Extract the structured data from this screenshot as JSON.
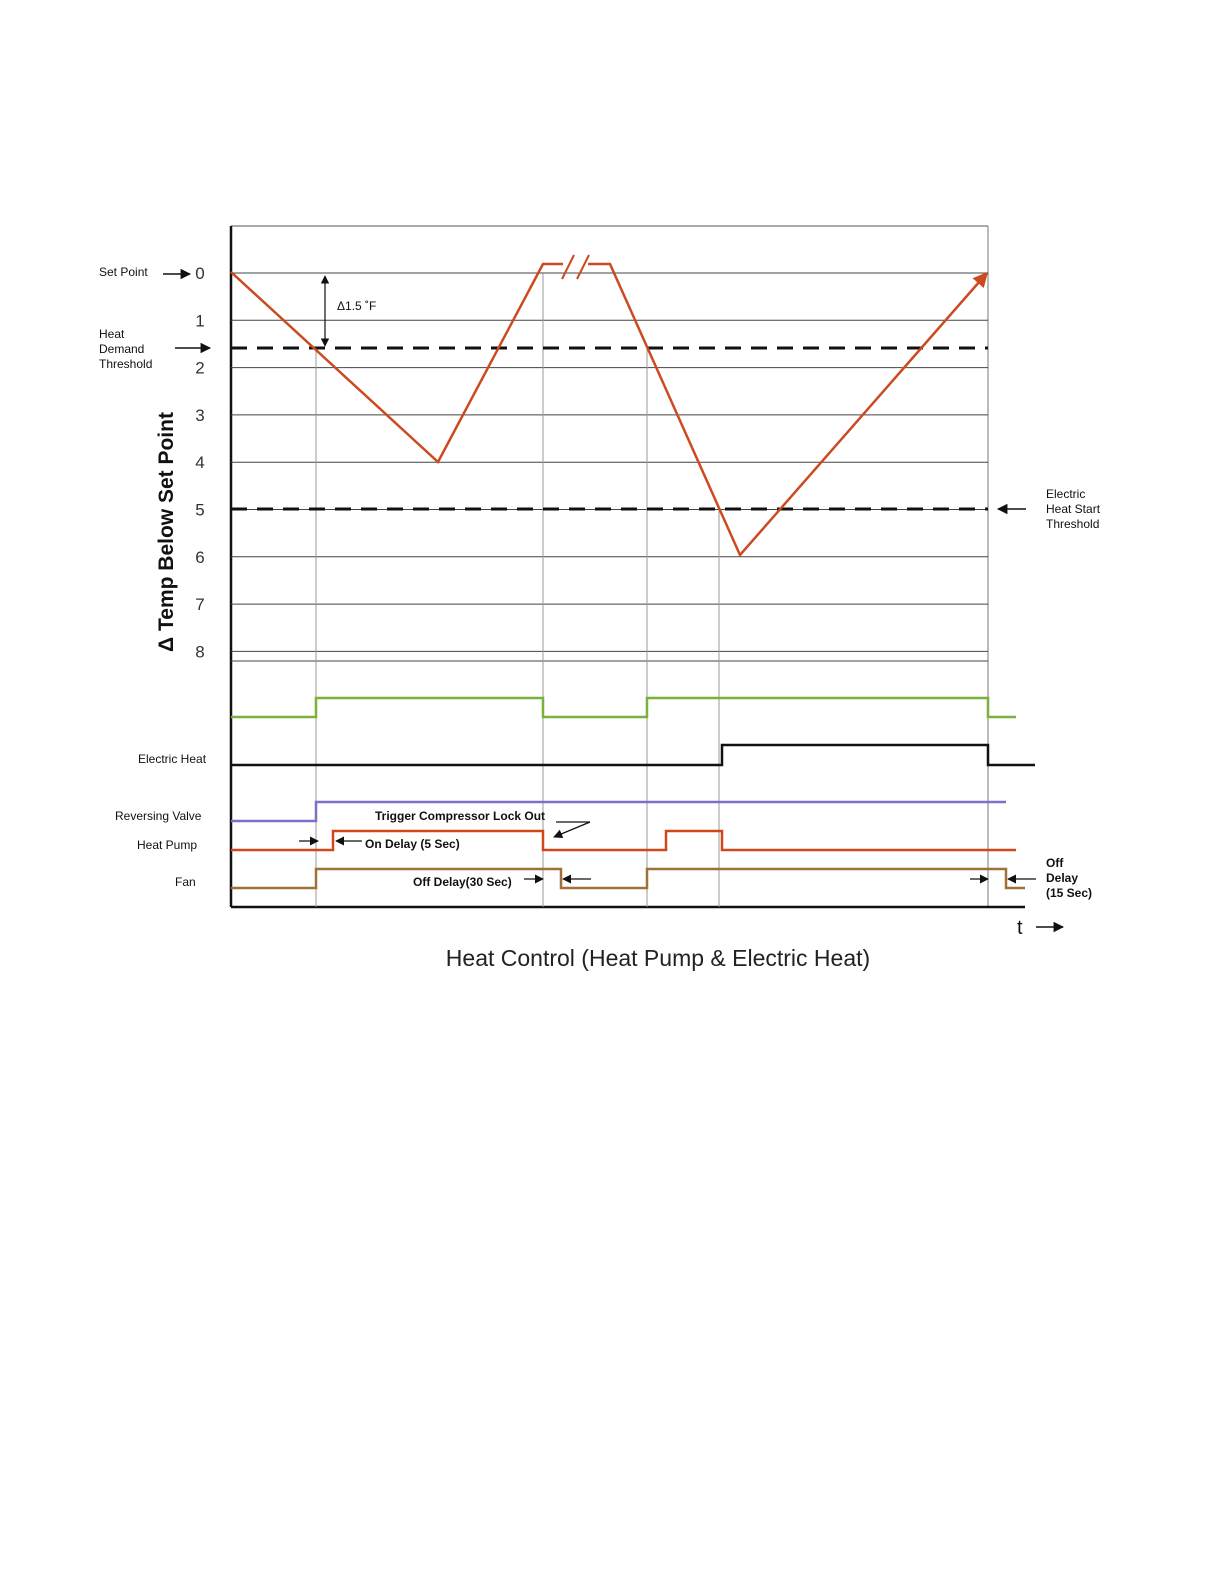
{
  "title": "Heat Control  (Heat Pump & Electric Heat)",
  "y_axis_label": "Δ Temp Below Set Point",
  "y_ticks": [
    "0",
    "1",
    "2",
    "3",
    "4",
    "5",
    "6",
    "7",
    "8"
  ],
  "time_label": "t",
  "set_point_label": "Set Point",
  "heat_demand_label": [
    "Heat",
    "Demand",
    "Threshold"
  ],
  "electric_heat_start_label": [
    "Electric",
    "Heat  Start",
    "Threshold"
  ],
  "delta_label": "Δ1.5 ˚F",
  "signals": {
    "electric_heat": "Electric Heat",
    "reversing_valve": "Reversing Valve",
    "heat_pump": "Heat Pump",
    "fan": "Fan"
  },
  "annotations": {
    "trigger_lockout": "Trigger Compressor Lock Out",
    "on_delay": "On Delay (5 Sec)",
    "off_delay_30": "Off Delay(30 Sec)",
    "off_delay_15": [
      "Off",
      "Delay",
      "(15 Sec)"
    ]
  },
  "colors": {
    "temperature_trace": "#cc4a20",
    "demand_signal": "#7ab13a",
    "electric_heat_signal": "#111111",
    "reversing_valve_signal": "#7a72c8",
    "heat_pump_signal": "#d2461c",
    "fan_signal": "#a4703a",
    "grid": "#444444"
  }
}
